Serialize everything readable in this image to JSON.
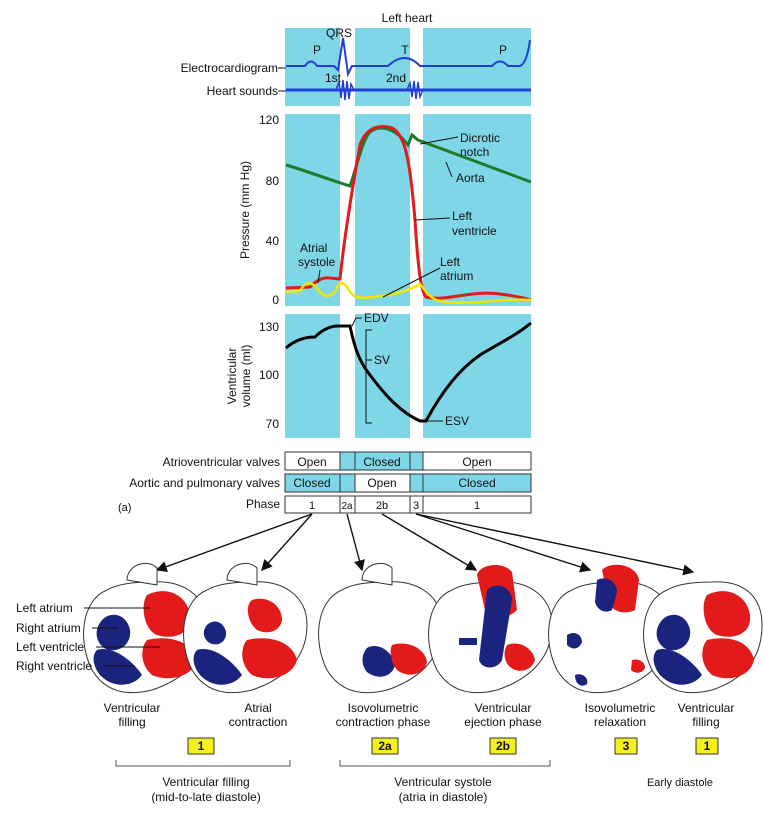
{
  "title": "Left heart",
  "ecg": {
    "label": "Electrocardiogram",
    "waves": [
      "P",
      "QRS",
      "T",
      "P"
    ]
  },
  "heart_sounds": {
    "label": "Heart sounds",
    "sounds": [
      "1st",
      "2nd"
    ]
  },
  "pressure": {
    "ylabel": "Pressure (mm Hg)",
    "ticks": [
      "120",
      "80",
      "40",
      "0"
    ],
    "ylim": [
      0,
      120
    ],
    "annotations": {
      "dicrotic_notch": "Dicrotic notch",
      "aorta": "Aorta",
      "left_ventricle": "Left ventricle",
      "atrial_systole": "Atrial systole",
      "left_atrium": "Left atrium"
    }
  },
  "volume": {
    "ylabel": "Ventricular volume (ml)",
    "ticks": [
      "130",
      "100",
      "70"
    ],
    "ylim": [
      70,
      130
    ],
    "annotations": {
      "edv": "EDV",
      "sv": "SV",
      "esv": "ESV"
    }
  },
  "valves": {
    "av_label": "Atrioventricular valves",
    "av_states": [
      "Open",
      "Closed",
      "Open"
    ],
    "semilunar_label": "Aortic and pulmonary valves",
    "semilunar_states": [
      "Closed",
      "Open",
      "Closed"
    ],
    "phase_label": "Phase",
    "phases": [
      "1",
      "2a",
      "2b",
      "3",
      "1"
    ]
  },
  "panel_label": "(a)",
  "chambers": [
    "Left atrium",
    "Right atrium",
    "Left ventricle",
    "Right ventricle"
  ],
  "hearts": [
    {
      "caption": "Ventricular filling"
    },
    {
      "caption": "Atrial contraction"
    },
    {
      "caption": "Isovolumetric contraction phase"
    },
    {
      "caption": "Ventricular ejection phase"
    },
    {
      "caption": "Isovolumetric relaxation"
    },
    {
      "caption": "Ventricular filling"
    }
  ],
  "phase_boxes": [
    "1",
    "2a",
    "2b",
    "3",
    "1"
  ],
  "groups": [
    {
      "line1": "Ventricular filling",
      "line2": "(mid-to-late diastole)"
    },
    {
      "line1": "Ventricular systole",
      "line2": "(atria in diastole)"
    },
    {
      "line1": "Early diastole",
      "line2": ""
    }
  ],
  "colors": {
    "panel_bg": "#7fd6e6",
    "phase_band": "#ffffff",
    "ecg_line": "#1f3fd8",
    "aorta_line": "#1f7a2a",
    "ventricle_line": "#e21a1a",
    "atrium_line": "#f2e600",
    "volume_line": "#000000",
    "oxygenated": "#e21a1a",
    "deoxygenated": "#1a237e",
    "phase_box_fill": "#f5f01c"
  }
}
